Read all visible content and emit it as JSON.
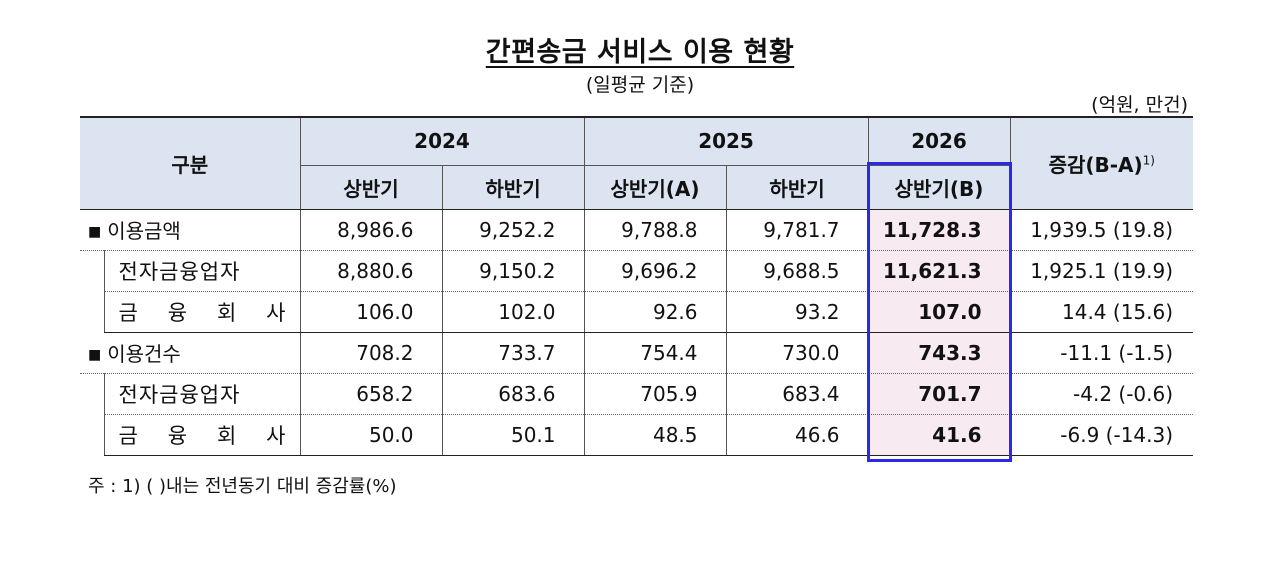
{
  "title": "간편송금 서비스 이용 현황",
  "subtitle": "(일평균 기준)",
  "unit": "(억원, 만건)",
  "header": {
    "category": "구분",
    "years": [
      "2024",
      "2025",
      "2026"
    ],
    "halves_2024": [
      "상반기",
      "하반기"
    ],
    "halves_2025": [
      "상반기(A)",
      "하반기"
    ],
    "halves_2026": [
      "상반기(B)"
    ],
    "change": "증감(B-A)",
    "change_sup": "1)"
  },
  "rows": [
    {
      "label": "이용금액",
      "bullet": "■",
      "values": [
        "8,986.6",
        "9,252.2",
        "9,788.8",
        "9,781.7",
        "11,728.3"
      ],
      "change": "1,939.5  (19.8)"
    },
    {
      "label": "전자금융업자",
      "values": [
        "8,880.6",
        "9,150.2",
        "9,696.2",
        "9,688.5",
        "11,621.3"
      ],
      "change": "1,925.1  (19.9)"
    },
    {
      "label_chars": [
        "금",
        "융",
        "회",
        "사"
      ],
      "values": [
        "106.0",
        "102.0",
        "92.6",
        "93.2",
        "107.0"
      ],
      "change": "14.4  (15.6)"
    },
    {
      "label": "이용건수",
      "bullet": "■",
      "values": [
        "708.2",
        "733.7",
        "754.4",
        "730.0",
        "743.3"
      ],
      "change": "-11.1  (-1.5)"
    },
    {
      "label": "전자금융업자",
      "values": [
        "658.2",
        "683.6",
        "705.9",
        "683.4",
        "701.7"
      ],
      "change": "-4.2  (-0.6)"
    },
    {
      "label_chars": [
        "금",
        "융",
        "회",
        "사"
      ],
      "values": [
        "50.0",
        "50.1",
        "48.5",
        "46.6",
        "41.6"
      ],
      "change": "-6.9 (-14.3)"
    }
  ],
  "note": "주 : 1) (   )내는 전년동기 대비 증감률(%)"
}
